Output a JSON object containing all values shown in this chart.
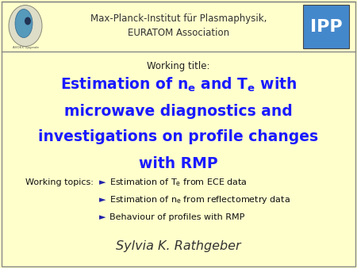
{
  "background_color": "#FFFFCC",
  "border_color": "#888888",
  "header_text": "Max-Planck-Institut für Plasmaphysik,\nEURATOM Association",
  "header_text_color": "#333333",
  "header_fontsize": 8.5,
  "working_title_label": "Working title:",
  "working_title_label_color": "#222222",
  "working_title_label_fontsize": 8.5,
  "main_title_color": "#1a1aff",
  "main_title_fontsize": 13.5,
  "working_topics_label": "Working topics:",
  "working_topics_label_color": "#111111",
  "working_topics_label_fontsize": 8.0,
  "bullet_symbol": "►",
  "bullet_color": "#2222aa",
  "bullet_fontsize": 8.0,
  "bullet_color_text": "#111111",
  "author": "Sylvia K. Rathgeber",
  "author_color": "#333333",
  "author_fontsize": 11.5,
  "ipp_bg": "#4488CC",
  "ipp_text": "IPP",
  "ipp_text_color": "#FFFFFF",
  "ipp_fontsize": 16
}
